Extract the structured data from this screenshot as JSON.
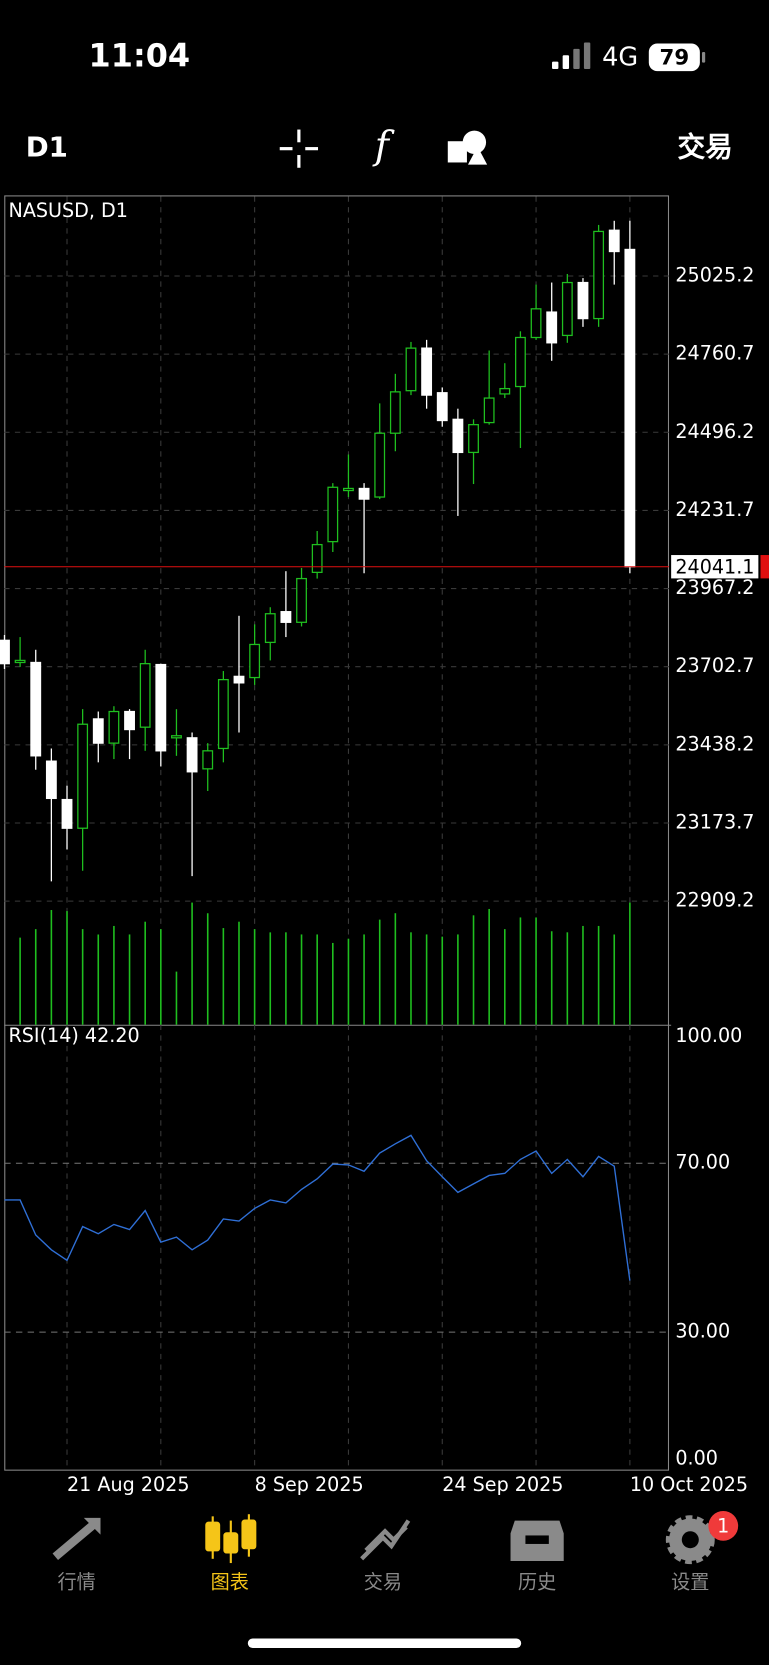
{
  "status_bar": {
    "time": "11:04",
    "network": "4G",
    "battery": "79"
  },
  "toolbar": {
    "timeframe": "D1",
    "trade": "交易"
  },
  "chart_data": [
    {
      "type": "candlestick",
      "title": "NASUSD, D1",
      "categories": [
        null,
        null,
        null,
        null,
        "21 Aug 2025",
        null,
        null,
        null,
        null,
        null,
        null,
        null,
        null,
        null,
        null,
        null,
        "8 Sep 2025",
        null,
        null,
        null,
        null,
        null,
        null,
        null,
        null,
        null,
        null,
        null,
        "24 Sep 2025",
        null,
        null,
        null,
        null,
        null,
        null,
        null,
        null,
        null,
        null,
        null,
        "10 Oct 2025"
      ],
      "open": [
        23792,
        23717,
        23717,
        23383,
        23253,
        23156,
        23526,
        23444,
        23551,
        23498,
        23710,
        23462,
        23462,
        23357,
        23426,
        23670,
        23666,
        23785,
        23889,
        23853,
        24022,
        24126,
        24299,
        24306,
        24277,
        24493,
        24637,
        24781,
        24630,
        24540,
        24428,
        24529,
        24626,
        24651,
        24817,
        24903,
        24824,
        25003,
        24881,
        25180,
        25115
      ],
      "high": [
        23810,
        23803,
        23760,
        23426,
        23300,
        23559,
        23551,
        23569,
        23559,
        23760,
        23713,
        23559,
        23480,
        23444,
        23688,
        23875,
        23846,
        23904,
        24026,
        24037,
        24162,
        24324,
        24421,
        24324,
        24594,
        24694,
        24802,
        24809,
        24648,
        24576,
        24540,
        24773,
        24730,
        24838,
        24996,
        25003,
        25032,
        25018,
        25198,
        25212,
        25212
      ],
      "low": [
        23695,
        23702,
        23354,
        22976,
        23084,
        23012,
        23379,
        23390,
        23390,
        23418,
        23365,
        23401,
        22994,
        23282,
        23379,
        23480,
        23641,
        23724,
        23803,
        23839,
        24001,
        24091,
        24277,
        24019,
        24270,
        24432,
        24622,
        24576,
        24515,
        24213,
        24321,
        24522,
        24612,
        24443,
        24809,
        24738,
        24799,
        24853,
        24853,
        24996,
        24019
      ],
      "close": [
        23713,
        23724,
        23401,
        23257,
        23156,
        23508,
        23444,
        23551,
        23490,
        23713,
        23418,
        23469,
        23347,
        23418,
        23659,
        23648,
        23778,
        23882,
        23853,
        24001,
        24116,
        24310,
        24306,
        24270,
        24493,
        24633,
        24781,
        24622,
        24536,
        24428,
        24522,
        24612,
        24644,
        24817,
        24914,
        24799,
        25003,
        24881,
        25176,
        25108,
        24041.1
      ],
      "volume": [
        null,
        82,
        90,
        108,
        107,
        90,
        85,
        93,
        85,
        97,
        90,
        50,
        115,
        105,
        91,
        97,
        90,
        87,
        87,
        85,
        85,
        77,
        81,
        85,
        99,
        105,
        87,
        85,
        83,
        85,
        103,
        109,
        90,
        101,
        101,
        88,
        87,
        93,
        93,
        85,
        115
      ],
      "up_color": "#1fbf1f",
      "down_color": "#ffffff",
      "volume_color": "#1fbf1f",
      "price_line_color": "#e01010",
      "ylim": [
        22491,
        25298
      ],
      "yticks": [
        22909.2,
        23173.7,
        23438.2,
        23702.7,
        23967.2,
        24231.7,
        24496.2,
        24760.7,
        25025.2
      ],
      "grid": true
    },
    {
      "type": "line",
      "title": "RSI(14) 42.20",
      "color": "#2f6fd6",
      "values": [
        61.3,
        61.3,
        53.0,
        49.5,
        47.0,
        55.0,
        53.3,
        55.5,
        54.3,
        58.8,
        51.3,
        52.5,
        49.5,
        51.8,
        56.8,
        56.3,
        59.3,
        61.3,
        60.6,
        63.8,
        66.3,
        69.8,
        69.6,
        68.1,
        72.4,
        74.6,
        76.6,
        70.6,
        66.8,
        63.1,
        65.1,
        67.1,
        67.6,
        70.9,
        72.9,
        67.6,
        70.9,
        66.8,
        71.6,
        69.3,
        42.2
      ],
      "ylim": [
        -2.8,
        102.8
      ],
      "yticks": [
        {
          "value": 0,
          "label": "0.00"
        },
        {
          "value": 30,
          "label": "30.00"
        },
        {
          "value": 70,
          "label": "70.00"
        },
        {
          "value": 100,
          "label": "100.00"
        }
      ],
      "levels": [
        30,
        70
      ]
    }
  ],
  "tab_bar": {
    "tabs": [
      "行情",
      "图表",
      "交易",
      "历史",
      "设置"
    ],
    "active": 1,
    "badge": "1"
  }
}
